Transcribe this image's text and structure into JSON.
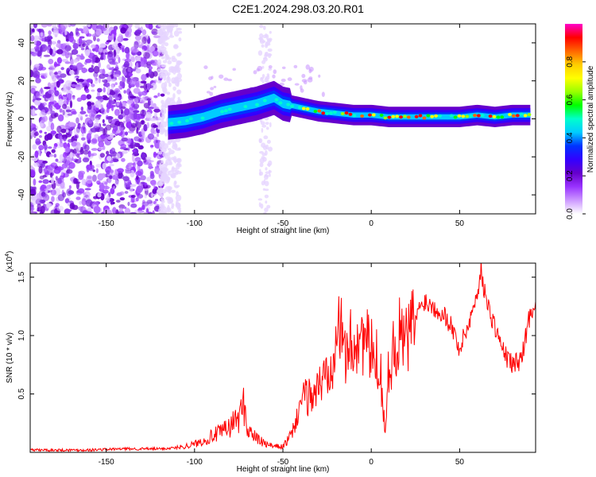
{
  "title": "C2E1.2024.298.03.20.R01",
  "chart_data": [
    {
      "type": "heatmap",
      "xlabel": "Height of straight line (km)",
      "ylabel": "Frequency (Hz)",
      "xlim": [
        -193,
        93
      ],
      "ylim": [
        -50,
        50
      ],
      "xticks": [
        -150,
        -100,
        -50,
        0,
        50
      ],
      "yticks": [
        -40,
        -20,
        0,
        20,
        40
      ],
      "colorbar": {
        "label": "Normalized spectral amplitude",
        "range": [
          0.0,
          1.0
        ],
        "ticks": [
          0.0,
          0.2,
          0.4,
          0.6,
          0.8
        ],
        "tick_labels": [
          "0.0",
          "0.2",
          "0.4",
          "0.6",
          "0.8"
        ],
        "colormap": [
          "#ffffff",
          "#cc99ff",
          "#9933ff",
          "#6600cc",
          "#3300ff",
          "#0033ff",
          "#00ccff",
          "#00ffcc",
          "#00ff00",
          "#99ff00",
          "#ffff00",
          "#ffcc00",
          "#ff6600",
          "#ff0000",
          "#ff00cc"
        ]
      },
      "ridge": {
        "x": [
          -115,
          -105,
          -95,
          -85,
          -75,
          -65,
          -55,
          -50,
          -45,
          -40,
          -35,
          -30,
          -20,
          -10,
          0,
          10,
          20,
          30,
          40,
          50,
          60,
          70,
          80,
          90
        ],
        "y": [
          -2,
          -1,
          1,
          4,
          6,
          8,
          11,
          8,
          7,
          6,
          5,
          4,
          3,
          2,
          2,
          1,
          1,
          1,
          1,
          1,
          2,
          1,
          2,
          2
        ]
      }
    },
    {
      "type": "line",
      "xlabel": "Height of straight line (km)",
      "ylabel": "SNR (10 * v/v)",
      "y_scale_label": "(x10",
      "y_scale_exp": "4",
      "y_scale_suffix": ")",
      "xlim": [
        -193,
        93
      ],
      "ylim": [
        0,
        1.62
      ],
      "xticks": [
        -150,
        -100,
        -50,
        0,
        50
      ],
      "yticks": [
        0.5,
        1.0,
        1.5
      ],
      "ytick_labels": [
        "0.5",
        "1.0",
        "1.5"
      ],
      "color": "#ff0000",
      "series": [
        {
          "x": [
            -193,
            -180,
            -160,
            -140,
            -120,
            -110,
            -100,
            -95,
            -90,
            -85,
            -80,
            -75,
            -72,
            -70,
            -65,
            -60,
            -55,
            -50,
            -45,
            -42,
            -40,
            -35,
            -30,
            -25,
            -22,
            -20,
            -15,
            -10,
            -5,
            0,
            5,
            8,
            10,
            15,
            20,
            25,
            28,
            30,
            35,
            40,
            45,
            50,
            55,
            58,
            60,
            62,
            65,
            70,
            75,
            80,
            85,
            90,
            93
          ],
          "y": [
            0.02,
            0.02,
            0.02,
            0.03,
            0.03,
            0.04,
            0.07,
            0.1,
            0.14,
            0.17,
            0.22,
            0.3,
            0.4,
            0.2,
            0.12,
            0.07,
            0.05,
            0.05,
            0.15,
            0.3,
            0.45,
            0.48,
            0.55,
            0.7,
            0.8,
            1.2,
            0.85,
            0.95,
            1.0,
            0.85,
            0.75,
            0.15,
            0.75,
            1.0,
            0.95,
            1.15,
            1.25,
            1.3,
            1.25,
            1.2,
            1.1,
            0.88,
            1.1,
            1.25,
            1.35,
            1.58,
            1.3,
            1.08,
            0.85,
            0.75,
            0.8,
            1.2,
            1.3
          ]
        }
      ]
    }
  ]
}
